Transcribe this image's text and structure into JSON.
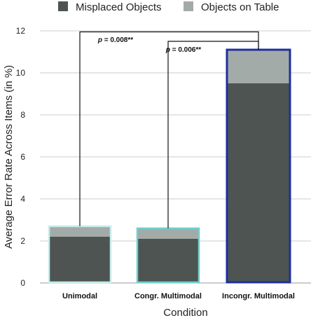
{
  "chart_data": {
    "type": "bar",
    "stacked": true,
    "categories": [
      "Unimodal",
      "Congr. Multimodal",
      "Incongr. Multimodal"
    ],
    "series": [
      {
        "name": "Misplaced Objects",
        "values": [
          2.2,
          2.1,
          9.5
        ],
        "color": "#4d5451"
      },
      {
        "name": "Objects on Table",
        "values": [
          0.5,
          0.5,
          1.6
        ],
        "color": "#a3aba8"
      }
    ],
    "bar_outline_colors": [
      "#c7ecec",
      "#6fd0d0",
      "#1e2f9c"
    ],
    "xlabel": "Condition",
    "ylabel": "Average Error Rate Across Items (in %)",
    "ylim": [
      0,
      12
    ],
    "yticks": [
      "0",
      "2",
      "4",
      "6",
      "8",
      "10",
      "12"
    ],
    "grid": true,
    "legend_position": "top",
    "significance": [
      {
        "from": "Unimodal",
        "to": "Incongr. Multimodal",
        "p_prefix": "p",
        "p_text": " = 0.008**"
      },
      {
        "from": "Congr. Multimodal",
        "to": "Incongr. Multimodal",
        "p_prefix": "p",
        "p_text": " = 0.006**"
      }
    ]
  }
}
